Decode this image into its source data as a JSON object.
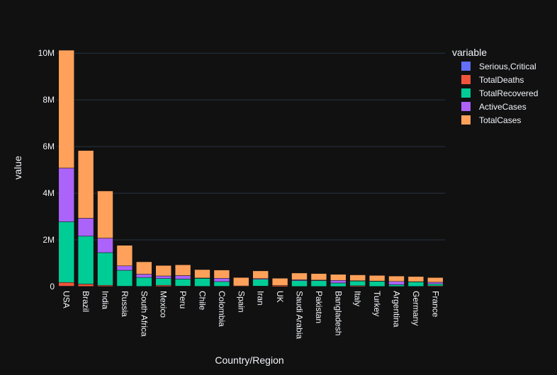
{
  "chart_data": {
    "type": "bar",
    "barmode": "stack",
    "title": "",
    "xlabel": "Country/Region",
    "ylabel": "value",
    "ylim": [
      0,
      10400000
    ],
    "yticks": [
      {
        "value": 0,
        "label": "0"
      },
      {
        "value": 2000000,
        "label": "2M"
      },
      {
        "value": 4000000,
        "label": "4M"
      },
      {
        "value": 6000000,
        "label": "6M"
      },
      {
        "value": 8000000,
        "label": "8M"
      },
      {
        "value": 10000000,
        "label": "10M"
      }
    ],
    "grid": true,
    "legend": {
      "title": "variable",
      "position": "right"
    },
    "categories": [
      "USA",
      "Brazil",
      "India",
      "Russia",
      "South Africa",
      "Mexico",
      "Peru",
      "Chile",
      "Colombia",
      "Spain",
      "Iran",
      "UK",
      "Saudi Arabia",
      "Pakistan",
      "Bangladesh",
      "Italy",
      "Turkey",
      "Argentina",
      "Germany",
      "France"
    ],
    "series": [
      {
        "name": "Serious,Critical",
        "color": "#636efa",
        "values": [
          18000,
          8300,
          8900,
          2300,
          540,
          3800,
          1500,
          1300,
          1500,
          600,
          4000,
          70,
          1900,
          850,
          0,
          50,
          1150,
          1200,
          250,
          400
        ]
      },
      {
        "name": "TotalDeaths",
        "color": "#ef553b",
        "values": [
          160000,
          100000,
          46000,
          14000,
          10000,
          51000,
          20000,
          10000,
          12000,
          28000,
          17000,
          46000,
          3000,
          6000,
          3000,
          35000,
          6000,
          4000,
          9000,
          30000
        ]
      },
      {
        "name": "TotalRecovered",
        "color": "#00cc96",
        "values": [
          2600000,
          2050000,
          1400000,
          680000,
          380000,
          290000,
          300000,
          340000,
          200000,
          0,
          290000,
          0,
          250000,
          250000,
          150000,
          200000,
          220000,
          75000,
          190000,
          85000
        ]
      },
      {
        "name": "ActiveCases",
        "color": "#ab63fa",
        "values": [
          2300000,
          770000,
          620000,
          190000,
          140000,
          110000,
          150000,
          15000,
          140000,
          0,
          30000,
          0,
          35000,
          20000,
          110000,
          15000,
          10000,
          140000,
          10000,
          70000
        ]
      },
      {
        "name": "TotalCases",
        "color": "#ffa15a",
        "values": [
          5050000,
          2900000,
          2020000,
          880000,
          530000,
          450000,
          460000,
          360000,
          355000,
          360000,
          330000,
          310000,
          290000,
          280000,
          260000,
          250000,
          240000,
          230000,
          220000,
          200000
        ]
      }
    ]
  }
}
